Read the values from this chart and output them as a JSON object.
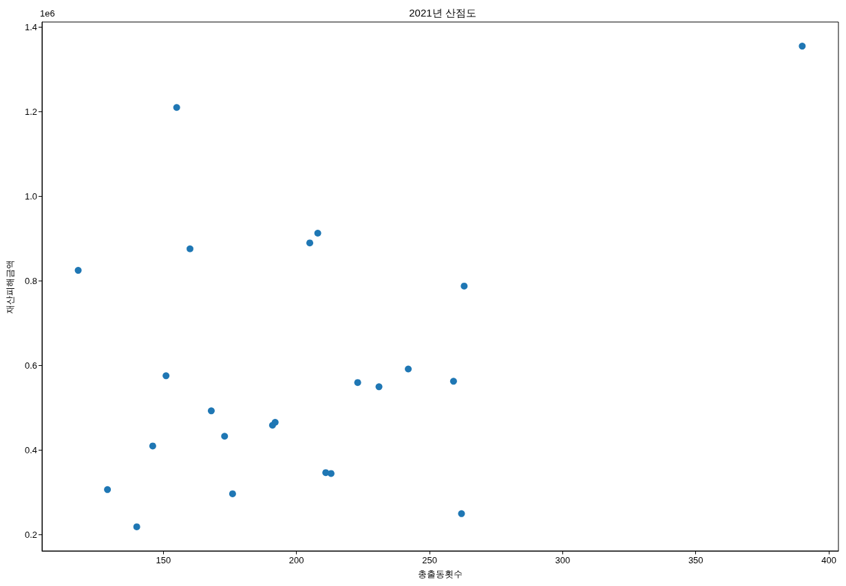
{
  "chart_data": {
    "type": "scatter",
    "title": "2021년 산점도",
    "xlabel": "총출동횟수",
    "ylabel": "재산피해금액",
    "annotations": [
      "1e6"
    ],
    "x": [
      118,
      129,
      140,
      146,
      151,
      155,
      160,
      168,
      173,
      176,
      191,
      192,
      205,
      208,
      211,
      213,
      223,
      231,
      242,
      259,
      262,
      263,
      390
    ],
    "values": [
      0.825,
      0.307,
      0.219,
      0.41,
      0.576,
      1.21,
      0.876,
      0.493,
      0.433,
      0.297,
      0.459,
      0.466,
      0.89,
      0.913,
      0.347,
      0.345,
      0.56,
      0.55,
      0.592,
      0.563,
      0.25,
      0.788,
      1.355
    ],
    "color": "#1f77b4",
    "marker": "circle",
    "xlim": [
      104.4,
      403.6
    ],
    "xticks": [
      150,
      200,
      250,
      300,
      350,
      400
    ],
    "ylim": [
      0.162,
      1.412
    ],
    "yticks": [
      0.2,
      0.4,
      0.6,
      0.8,
      {
        "value": 1,
        "label": "1.0"
      },
      1.2,
      1.4
    ]
  }
}
